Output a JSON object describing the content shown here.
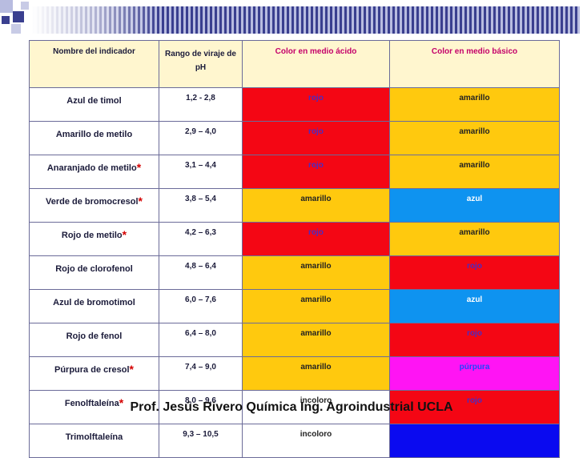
{
  "header": {
    "name": "Nombre del indicador",
    "range": "Rango de viraje de pH",
    "acid": "Color en medio ácido",
    "base": "Color en medio básico"
  },
  "rows": [
    {
      "name": "Azul de timol",
      "star": false,
      "range": "1,2 - 2,8",
      "acid": "rojo",
      "acid_color": "rojo",
      "base": "amarillo",
      "base_color": "amarillo"
    },
    {
      "name": "Amarillo de metilo",
      "star": false,
      "range": "2,9 – 4,0",
      "acid": "rojo",
      "acid_color": "rojo",
      "base": "amarillo",
      "base_color": "amarillo"
    },
    {
      "name": "Anaranjado de metilo",
      "star": true,
      "range": "3,1 – 4,4",
      "acid": "rojo",
      "acid_color": "rojo",
      "base": "amarillo",
      "base_color": "amarillo"
    },
    {
      "name": "Verde de bromocresol",
      "star": true,
      "range": "3,8 – 5,4",
      "acid": "amarillo",
      "acid_color": "amarillo",
      "base": "azul",
      "base_color": "azul"
    },
    {
      "name": "Rojo de metilo",
      "star": true,
      "range": "4,2 – 6,3",
      "acid": "rojo",
      "acid_color": "rojo",
      "base": "amarillo",
      "base_color": "amarillo"
    },
    {
      "name": "Rojo de clorofenol",
      "star": false,
      "range": "4,8 – 6,4",
      "acid": "amarillo",
      "acid_color": "amarillo",
      "base": "rojo",
      "base_color": "rojo"
    },
    {
      "name": "Azul de bromotimol",
      "star": false,
      "range": "6,0 – 7,6",
      "acid": "amarillo",
      "acid_color": "amarillo",
      "base": "azul",
      "base_color": "azul"
    },
    {
      "name": "Rojo de fenol",
      "star": false,
      "range": "6,4 – 8,0",
      "acid": "amarillo",
      "acid_color": "amarillo",
      "base": "rojo",
      "base_color": "rojo"
    },
    {
      "name": "Púrpura de cresol",
      "star": true,
      "range": "7,4 – 9,0",
      "acid": "amarillo",
      "acid_color": "amarillo",
      "base": "púrpura",
      "base_color": "purpura"
    },
    {
      "name": "Fenolftaleína",
      "star": true,
      "range": "8,0 – 9,6",
      "acid": "incoloro",
      "acid_color": "incoloro",
      "base": "rojo",
      "base_color": "rojo"
    },
    {
      "name": "Trimolftaleína",
      "star": false,
      "range": "9,3 – 10,5",
      "acid": "incoloro",
      "acid_color": "incoloro",
      "base": "",
      "base_color": "azul-oscuro"
    }
  ],
  "star_symbol": "*",
  "colors": {
    "rojo": "#f40614",
    "amarillo": "#ffc90e",
    "azul": "#0e93f0",
    "purpura": "#ff14f4",
    "azul_oscuro": "#0a0af0",
    "header_bg": "#fff6cf",
    "accent": "#c4006a"
  },
  "footer": "Prof. Jesús Rivero Química Ing. Agroindustrial UCLA"
}
